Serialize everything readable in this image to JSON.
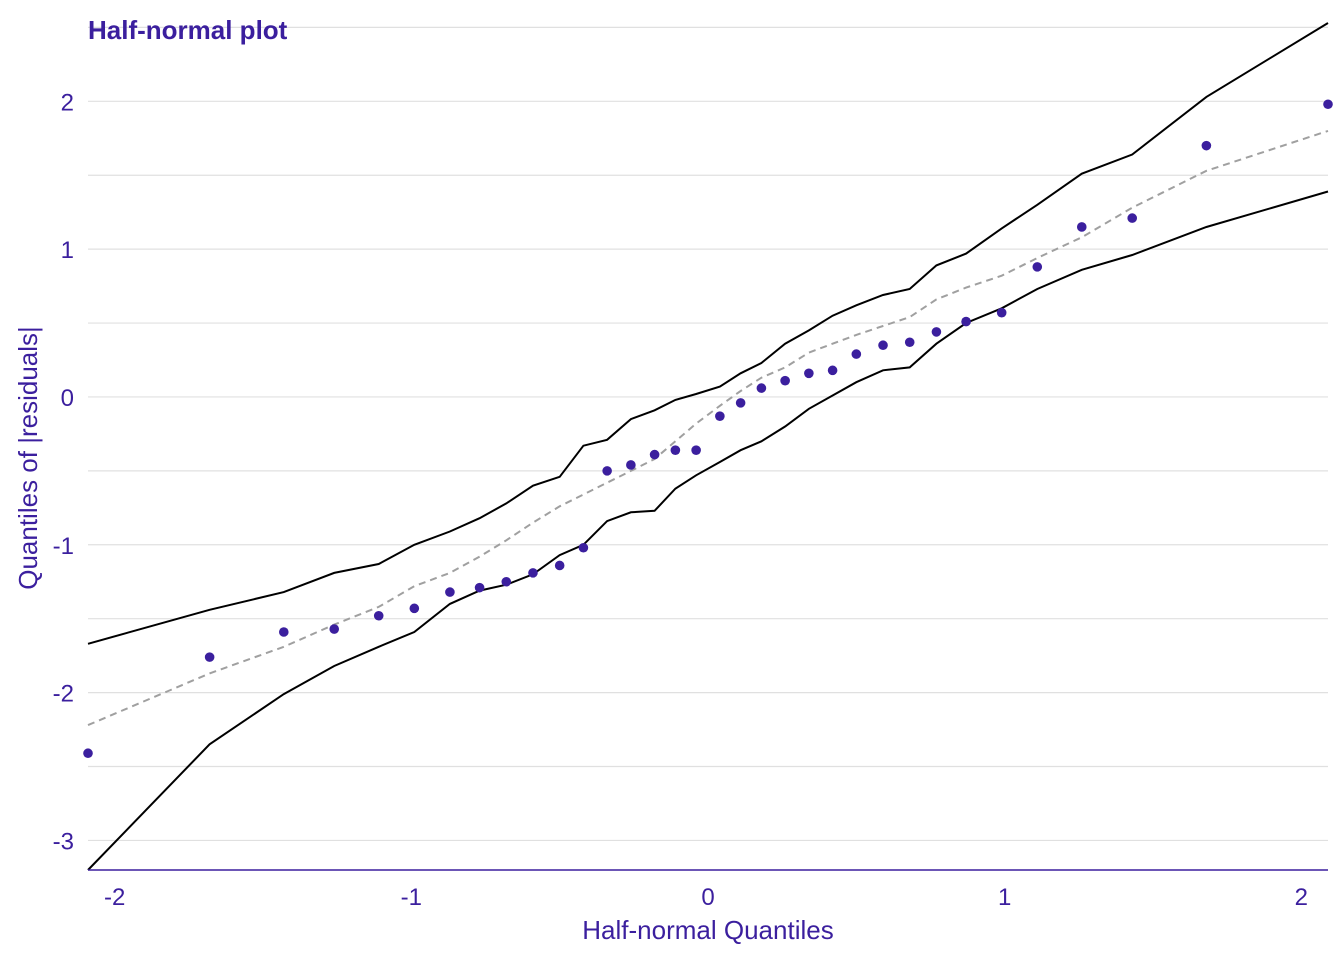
{
  "chart_data": {
    "type": "scatter",
    "title": "Half-normal plot",
    "xlabel": "Half-normal Quantiles",
    "ylabel": "Quantiles of |residuals|",
    "xlim": [
      -2.09,
      2.09
    ],
    "ylim": [
      -3.2,
      2.55
    ],
    "x_ticks": [
      -2,
      -1,
      0,
      1,
      2
    ],
    "x_tick_labels": [
      "-2",
      "-1",
      "0",
      "1",
      "2"
    ],
    "y_ticks": [
      -3,
      -2,
      -1,
      0,
      1,
      2
    ],
    "y_tick_labels": [
      "-3",
      "-2",
      "-1",
      "0",
      "1",
      "2"
    ],
    "y_gridlines": [
      -3,
      -2.5,
      -2,
      -1.5,
      -1,
      -0.5,
      0,
      0.5,
      1,
      1.5,
      2,
      2.5
    ],
    "grid": true,
    "colors": {
      "points": "#3b1f9e",
      "text": "#3b1f9e",
      "envelope": "#000000",
      "median": "#a0a0a0",
      "grid": "#e0e0e0"
    },
    "points": {
      "x": [
        -2.09,
        -1.68,
        -1.43,
        -1.26,
        -1.11,
        -0.99,
        -0.87,
        -0.77,
        -0.68,
        -0.59,
        -0.5,
        -0.42,
        -0.34,
        -0.26,
        -0.18,
        -0.11,
        -0.04,
        0.04,
        0.11,
        0.18,
        0.26,
        0.34,
        0.42,
        0.5,
        0.59,
        0.68,
        0.77,
        0.87,
        0.99,
        1.11,
        1.26,
        1.43,
        1.68,
        2.09
      ],
      "y": [
        -2.41,
        -1.76,
        -1.59,
        -1.57,
        -1.48,
        -1.43,
        -1.32,
        -1.29,
        -1.25,
        -1.19,
        -1.14,
        -1.02,
        -0.5,
        -0.46,
        -0.39,
        -0.36,
        -0.36,
        -0.13,
        -0.04,
        0.06,
        0.11,
        0.16,
        0.18,
        0.29,
        0.35,
        0.37,
        0.44,
        0.51,
        0.57,
        0.88,
        1.15,
        1.21,
        1.7,
        1.98
      ]
    },
    "upper_envelope": {
      "x": [
        -2.09,
        -1.68,
        -1.43,
        -1.26,
        -1.11,
        -0.99,
        -0.87,
        -0.77,
        -0.68,
        -0.59,
        -0.5,
        -0.42,
        -0.34,
        -0.26,
        -0.18,
        -0.11,
        -0.04,
        0.04,
        0.11,
        0.18,
        0.26,
        0.34,
        0.42,
        0.5,
        0.59,
        0.68,
        0.77,
        0.87,
        0.99,
        1.11,
        1.26,
        1.43,
        1.68,
        2.09
      ],
      "y": [
        -1.67,
        -1.44,
        -1.32,
        -1.19,
        -1.13,
        -1.0,
        -0.91,
        -0.82,
        -0.72,
        -0.6,
        -0.54,
        -0.33,
        -0.29,
        -0.15,
        -0.09,
        -0.02,
        0.02,
        0.07,
        0.16,
        0.23,
        0.36,
        0.45,
        0.55,
        0.62,
        0.69,
        0.73,
        0.89,
        0.97,
        1.14,
        1.3,
        1.51,
        1.64,
        2.03,
        2.53
      ]
    },
    "lower_envelope": {
      "x": [
        -2.09,
        -1.68,
        -1.43,
        -1.26,
        -1.11,
        -0.99,
        -0.87,
        -0.77,
        -0.68,
        -0.59,
        -0.5,
        -0.42,
        -0.34,
        -0.26,
        -0.18,
        -0.11,
        -0.04,
        0.04,
        0.11,
        0.18,
        0.26,
        0.34,
        0.42,
        0.5,
        0.59,
        0.68,
        0.77,
        0.87,
        0.99,
        1.11,
        1.26,
        1.43,
        1.68,
        2.09
      ],
      "y": [
        -3.2,
        -2.35,
        -2.01,
        -1.82,
        -1.69,
        -1.59,
        -1.4,
        -1.31,
        -1.27,
        -1.2,
        -1.07,
        -1.0,
        -0.84,
        -0.78,
        -0.77,
        -0.62,
        -0.53,
        -0.44,
        -0.36,
        -0.3,
        -0.2,
        -0.08,
        0.01,
        0.1,
        0.18,
        0.2,
        0.36,
        0.5,
        0.6,
        0.73,
        0.86,
        0.96,
        1.15,
        1.39
      ]
    },
    "median_line": {
      "x": [
        -2.09,
        -1.68,
        -1.43,
        -1.26,
        -1.11,
        -0.99,
        -0.87,
        -0.77,
        -0.68,
        -0.59,
        -0.5,
        -0.42,
        -0.34,
        -0.26,
        -0.18,
        -0.11,
        -0.04,
        0.04,
        0.11,
        0.18,
        0.26,
        0.34,
        0.42,
        0.5,
        0.59,
        0.68,
        0.77,
        0.87,
        0.99,
        1.11,
        1.26,
        1.43,
        1.68,
        2.09
      ],
      "y": [
        -2.22,
        -1.87,
        -1.69,
        -1.54,
        -1.42,
        -1.28,
        -1.19,
        -1.08,
        -0.97,
        -0.85,
        -0.74,
        -0.66,
        -0.58,
        -0.5,
        -0.42,
        -0.3,
        -0.18,
        -0.06,
        0.04,
        0.13,
        0.2,
        0.3,
        0.36,
        0.42,
        0.48,
        0.54,
        0.66,
        0.74,
        0.82,
        0.94,
        1.08,
        1.28,
        1.53,
        1.8
      ]
    }
  }
}
